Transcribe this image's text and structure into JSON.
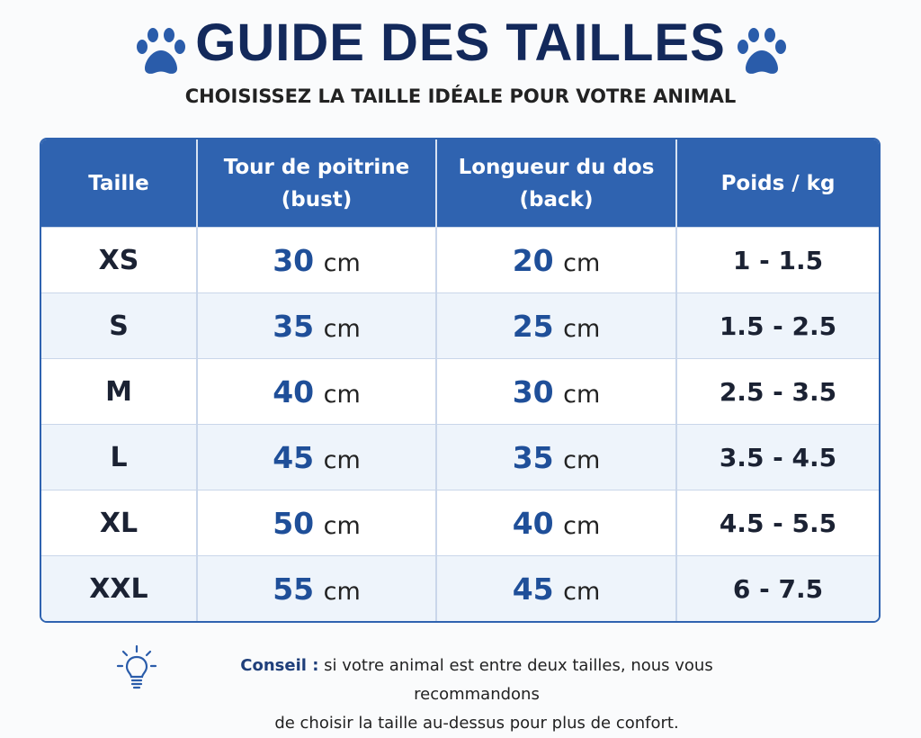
{
  "header": {
    "title": "GUIDE DES TAILLES",
    "subtitle": "CHOISISSEZ LA TAILLE IDÉALE POUR VOTRE ANIMAL"
  },
  "table": {
    "columns": [
      [
        "Taille"
      ],
      [
        "Tour de poitrine",
        "(bust)"
      ],
      [
        "Longueur du dos",
        "(back)"
      ],
      [
        "Poids / kg"
      ]
    ],
    "rows": [
      {
        "size": "XS",
        "bust": {
          "value": "30",
          "unit": "cm"
        },
        "back": {
          "value": "20",
          "unit": "cm"
        },
        "weight": "1 - 1.5"
      },
      {
        "size": "S",
        "bust": {
          "value": "35",
          "unit": "cm"
        },
        "back": {
          "value": "25",
          "unit": "cm"
        },
        "weight": "1.5 - 2.5"
      },
      {
        "size": "M",
        "bust": {
          "value": "40",
          "unit": "cm"
        },
        "back": {
          "value": "30",
          "unit": "cm"
        },
        "weight": "2.5 - 3.5"
      },
      {
        "size": "L",
        "bust": {
          "value": "45",
          "unit": "cm"
        },
        "back": {
          "value": "35",
          "unit": "cm"
        },
        "weight": "3.5 - 4.5"
      },
      {
        "size": "XL",
        "bust": {
          "value": "50",
          "unit": "cm"
        },
        "back": {
          "value": "40",
          "unit": "cm"
        },
        "weight": "4.5 - 5.5"
      },
      {
        "size": "XXL",
        "bust": {
          "value": "55",
          "unit": "cm"
        },
        "back": {
          "value": "45",
          "unit": "cm"
        },
        "weight": "6 - 7.5"
      }
    ]
  },
  "tip": {
    "label": "Conseil :",
    "lines": [
      "si votre animal est entre deux tailles, nous vous recommandons",
      "de choisir la taille au-dessus pour plus de confort."
    ]
  }
}
